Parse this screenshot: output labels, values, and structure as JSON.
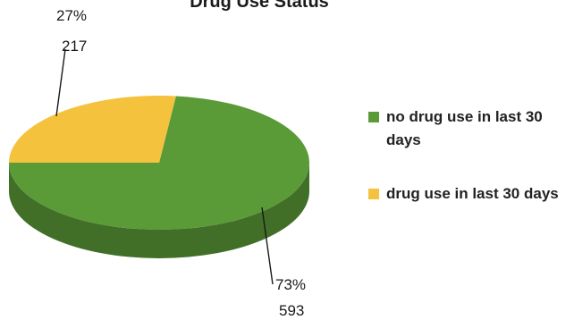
{
  "chart_data": {
    "type": "pie",
    "style": "3d",
    "title": "Drug Use Status",
    "slices": [
      {
        "label": "no drug use in last 30 days",
        "value": 593,
        "percent": "73%",
        "color": "#5a9a37"
      },
      {
        "label": "drug use in last 30 days",
        "value": 217,
        "percent": "27%",
        "color": "#f5c23e"
      }
    ],
    "legend_position": "right"
  }
}
